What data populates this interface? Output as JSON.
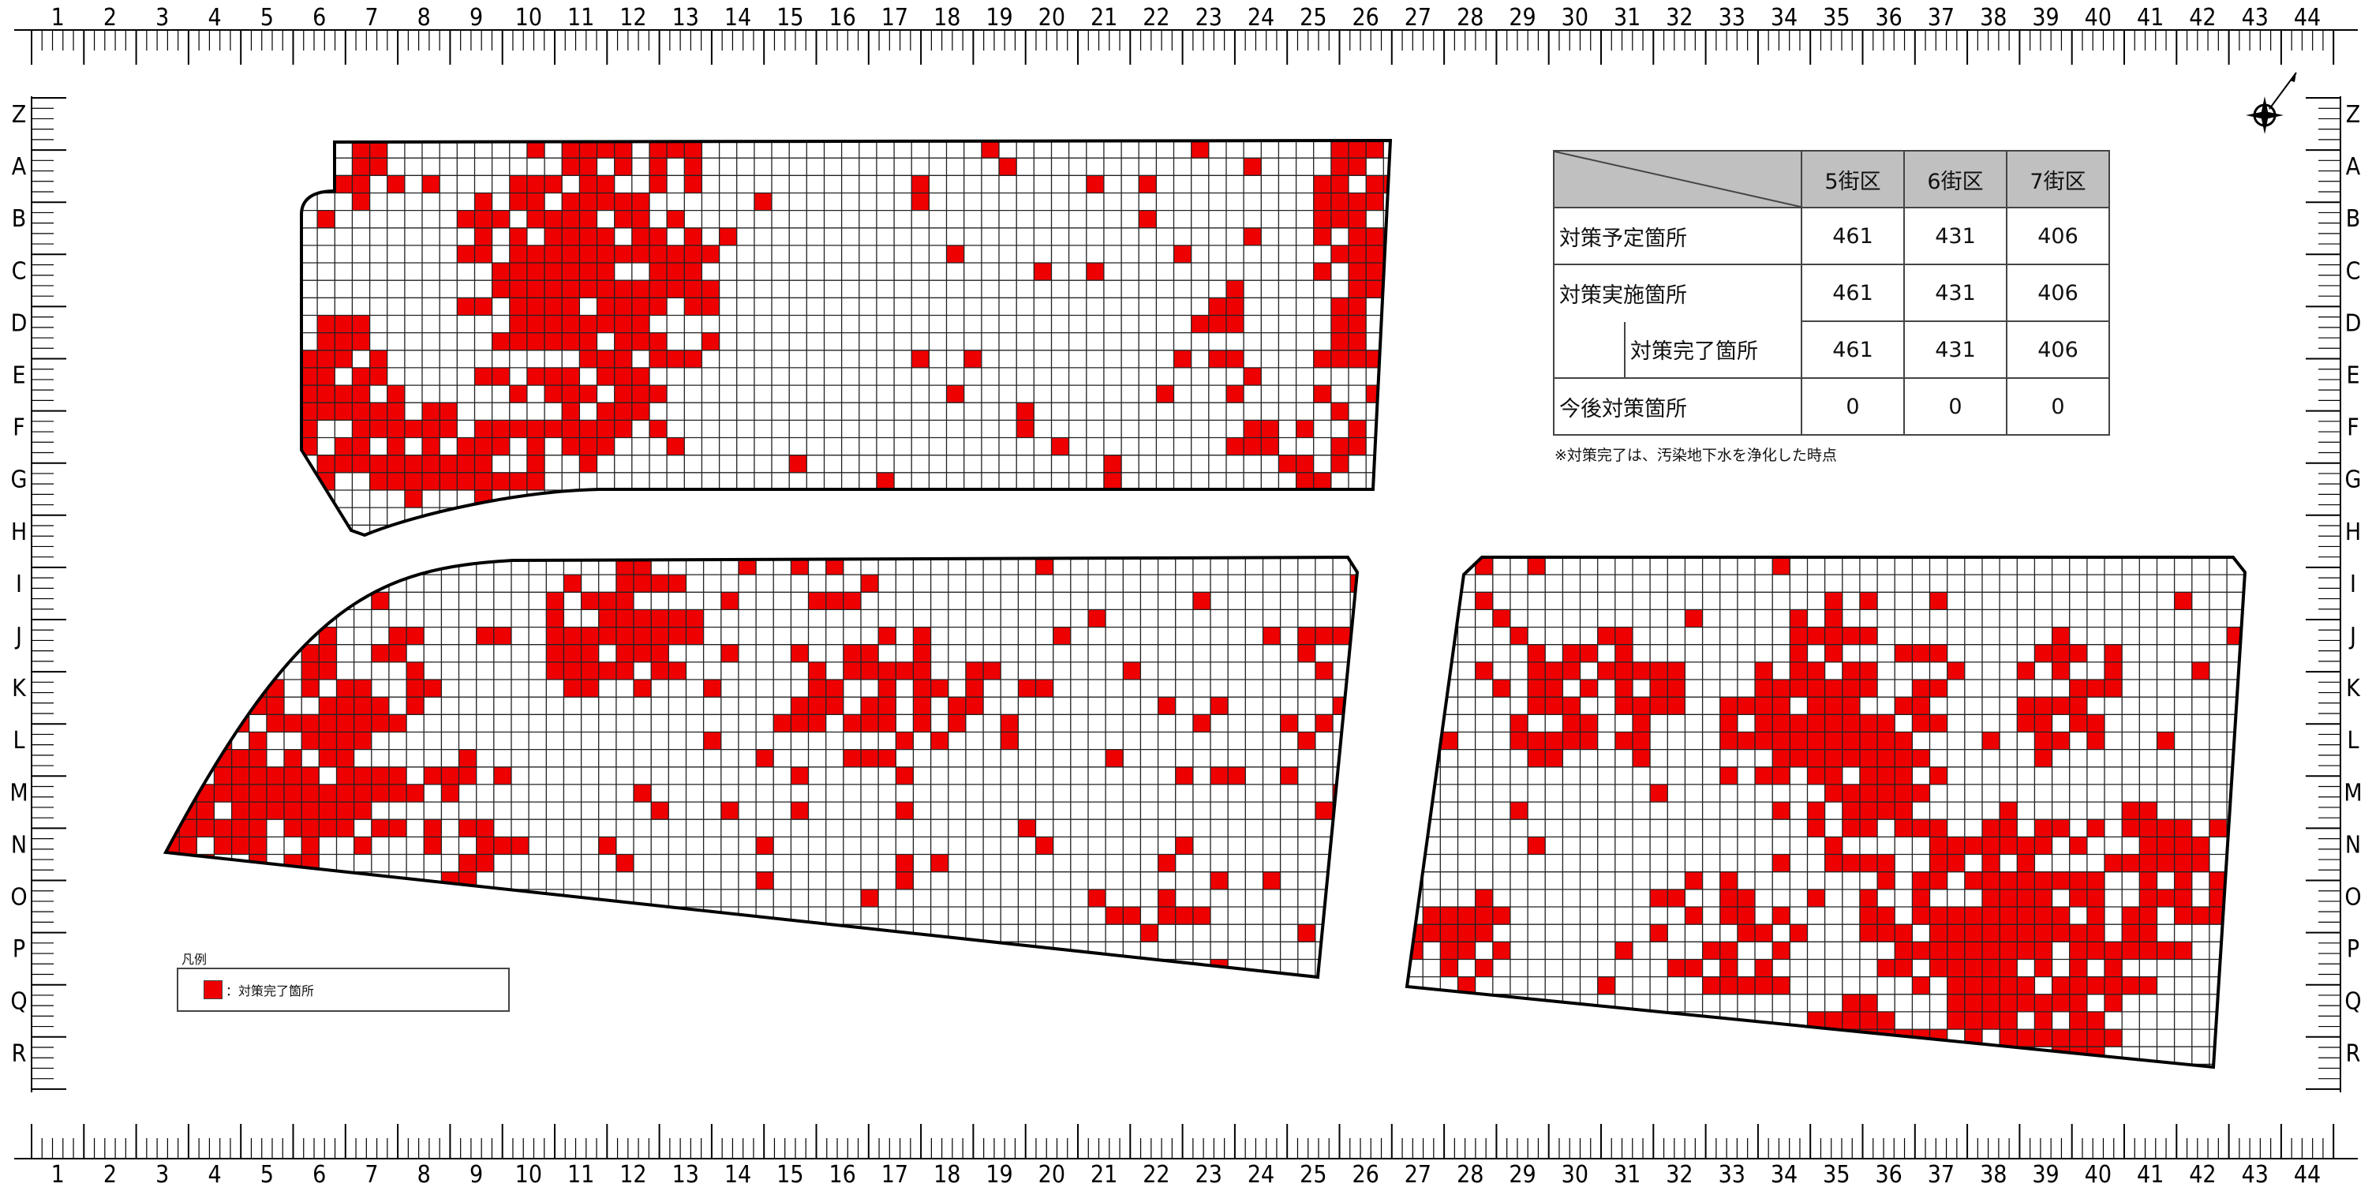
{
  "column_labels": [
    "1",
    "2",
    "3",
    "4",
    "5",
    "6",
    "7",
    "8",
    "9",
    "10",
    "11",
    "12",
    "13",
    "14",
    "15",
    "16",
    "17",
    "18",
    "19",
    "20",
    "21",
    "22",
    "23",
    "24",
    "25",
    "26",
    "27",
    "28",
    "29",
    "30",
    "31",
    "32",
    "33",
    "34",
    "35",
    "36",
    "37",
    "38",
    "39",
    "40",
    "41",
    "42",
    "43",
    "44"
  ],
  "row_labels": [
    "Z",
    "A",
    "B",
    "C",
    "D",
    "E",
    "F",
    "G",
    "H",
    "I",
    "J",
    "K",
    "L",
    "M",
    "N",
    "O",
    "P",
    "Q",
    "R"
  ],
  "summary_table": {
    "headers": [
      "5街区",
      "6街区",
      "7街区"
    ],
    "rows": [
      {
        "label": "対策予定箇所",
        "values": [
          "461",
          "431",
          "406"
        ]
      },
      {
        "label": "対策実施箇所",
        "values": [
          "461",
          "431",
          "406"
        ]
      },
      {
        "label": "対策完了箇所",
        "values": [
          "461",
          "431",
          "406"
        ]
      },
      {
        "label": "今後対策箇所",
        "values": [
          "0",
          "0",
          "0"
        ]
      }
    ],
    "note": "※対策完了は、汚染地下水を浄化した時点"
  },
  "legend": {
    "title": "凡例",
    "item_label": "：対策完了箇所",
    "item_color": "#ee0000"
  },
  "colors": {
    "completed": "#ee0000",
    "grid_line": "#222222",
    "outline": "#000000",
    "header_fill": "#c0c0c0"
  },
  "icons": [
    "compass-rose-icon"
  ]
}
